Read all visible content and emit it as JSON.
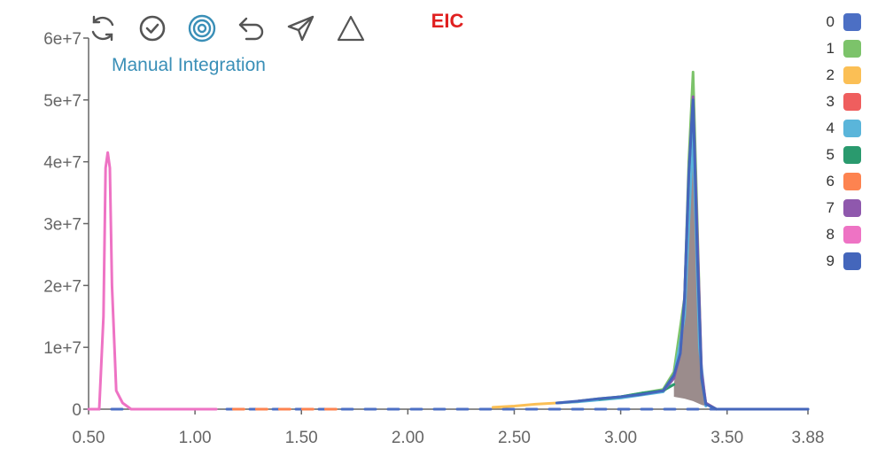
{
  "toolbar": {
    "tools": [
      {
        "name": "refresh-icon"
      },
      {
        "name": "check-circle-icon"
      },
      {
        "name": "target-icon"
      },
      {
        "name": "undo-icon"
      },
      {
        "name": "send-icon"
      },
      {
        "name": "triangle-icon"
      }
    ],
    "active_color": "#3a8fb7",
    "default_color": "#555555"
  },
  "mode_label": "Manual Integration",
  "chart_data": {
    "type": "line",
    "title": "EIC",
    "xlim": [
      0.5,
      3.88
    ],
    "ylim": [
      0,
      60000000
    ],
    "x_ticks": [
      0.5,
      1.0,
      1.5,
      2.0,
      2.5,
      3.0,
      3.5,
      3.88
    ],
    "x_tick_labels": [
      "0.50",
      "1.00",
      "1.50",
      "2.00",
      "2.50",
      "3.00",
      "3.50",
      "3.88"
    ],
    "y_ticks": [
      0,
      10000000,
      20000000,
      30000000,
      40000000,
      50000000,
      60000000
    ],
    "y_tick_labels": [
      "0",
      "1e+7",
      "2e+7",
      "3e+7",
      "4e+7",
      "5e+7",
      "6e+7"
    ],
    "legend_position": "top-right",
    "series": [
      {
        "name": "0",
        "color": "#4c6fc4",
        "x": [
          0.5,
          3.88
        ],
        "y": [
          0,
          0
        ]
      },
      {
        "name": "1",
        "color": "#7cc36a",
        "x": [
          2.8,
          2.9,
          3.0,
          3.1,
          3.2,
          3.25,
          3.3,
          3.32,
          3.34,
          3.36,
          3.38,
          3.4,
          3.45
        ],
        "y": [
          1300000,
          1700000,
          2000000,
          2600000,
          3200000,
          6000000,
          18000000,
          40000000,
          54500000,
          30000000,
          5000000,
          1000000,
          0
        ]
      },
      {
        "name": "2",
        "color": "#fbbf55",
        "x": [
          2.4,
          2.5,
          2.6,
          2.7,
          2.8
        ],
        "y": [
          300000,
          500000,
          800000,
          1000000,
          1200000
        ]
      },
      {
        "name": "3",
        "color": "#ef5e5e",
        "x": [
          2.8,
          2.9,
          3.0
        ],
        "y": [
          1300000,
          1600000,
          1900000
        ]
      },
      {
        "name": "4",
        "color": "#5ab5da",
        "x": [
          2.7,
          2.8,
          2.9,
          3.0,
          3.1,
          3.2,
          3.25,
          3.3,
          3.34,
          3.37,
          3.4
        ],
        "y": [
          1000000,
          1200000,
          1500000,
          1800000,
          2300000,
          2800000,
          5000000,
          15000000,
          45000000,
          10000000,
          500000
        ]
      },
      {
        "name": "5",
        "color": "#2a9a6e",
        "x": [
          2.9,
          3.0,
          3.1,
          3.2,
          3.25
        ],
        "y": [
          1600000,
          2000000,
          2600000,
          3000000,
          4000000
        ]
      },
      {
        "name": "6",
        "color": "#fd8350",
        "x": [
          1.18,
          1.5,
          1.68
        ],
        "y": [
          0,
          0,
          0
        ]
      },
      {
        "name": "7",
        "color": "#8f58ad",
        "x": [
          3.2,
          3.25,
          3.28,
          3.3,
          3.32,
          3.34,
          3.36,
          3.38,
          3.4,
          3.45
        ],
        "y": [
          3000000,
          5000000,
          9000000,
          18000000,
          38000000,
          50500000,
          28000000,
          6000000,
          1000000,
          0
        ]
      },
      {
        "name": "8",
        "color": "#ee73c4",
        "x": [
          0.5,
          0.55,
          0.57,
          0.58,
          0.59,
          0.6,
          0.61,
          0.63,
          0.66,
          0.7,
          0.8,
          1.1
        ],
        "y": [
          0,
          0,
          15000000,
          39000000,
          41500000,
          39000000,
          20000000,
          3000000,
          1000000,
          0,
          0,
          0
        ]
      },
      {
        "name": "9",
        "color": "#4466bb",
        "x": [
          2.7,
          2.8,
          2.9,
          3.0,
          3.1,
          3.2,
          3.25,
          3.28,
          3.3,
          3.32,
          3.34,
          3.36,
          3.38,
          3.4,
          3.45,
          3.88
        ],
        "y": [
          1000000,
          1300000,
          1700000,
          2000000,
          2400000,
          3000000,
          5500000,
          9000000,
          18000000,
          38000000,
          50000000,
          25000000,
          5000000,
          800000,
          0,
          0
        ]
      }
    ],
    "integration_area": {
      "color": "#8a7878",
      "x": [
        3.25,
        3.3,
        3.32,
        3.34,
        3.36,
        3.38,
        3.4
      ],
      "y": [
        4000000,
        18000000,
        38000000,
        50000000,
        25000000,
        5000000,
        500000
      ],
      "baseline": [
        2000000,
        1700000,
        1500000,
        1300000,
        1000000,
        700000,
        500000
      ]
    }
  }
}
